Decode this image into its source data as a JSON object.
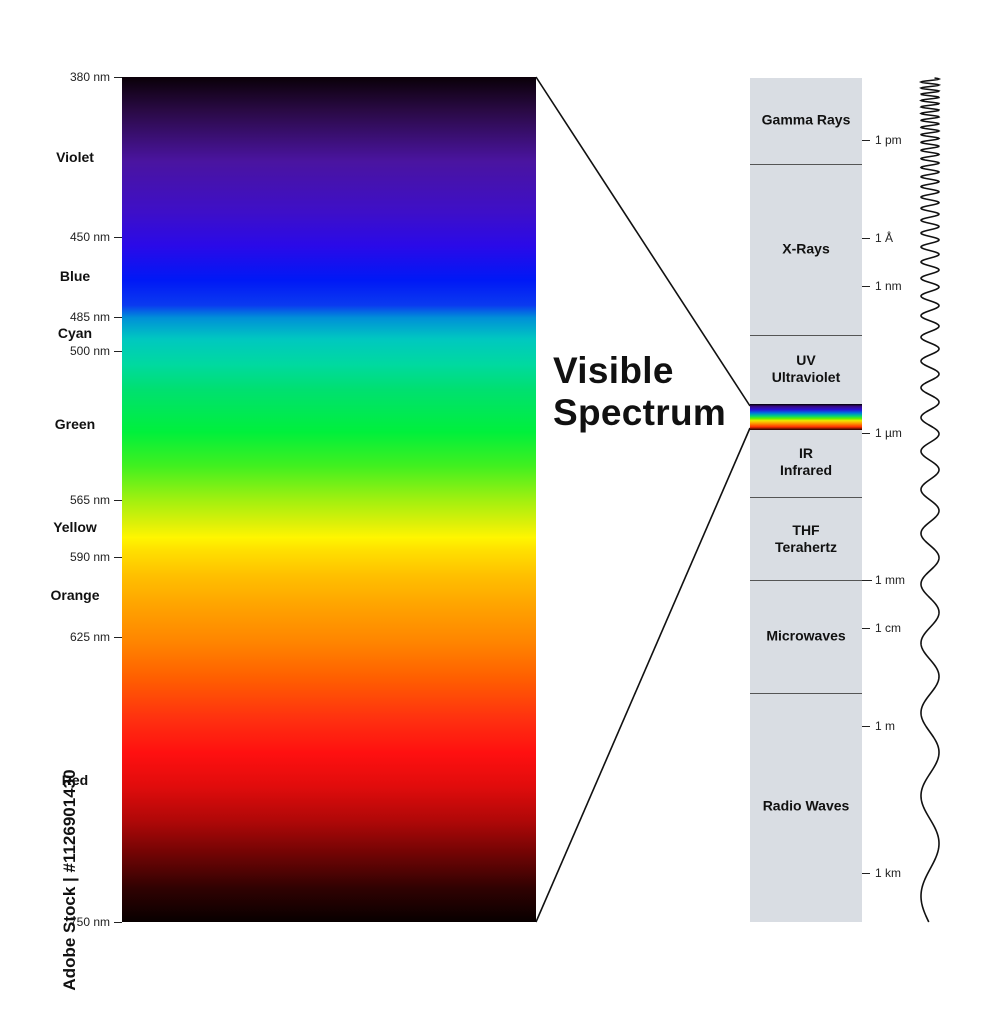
{
  "title": "Visible Spectrum",
  "title_line1": "Visible",
  "title_line2": "Spectrum",
  "wavelength_ticks": [
    {
      "label": "380 nm",
      "nm": 380
    },
    {
      "label": "450 nm",
      "nm": 450
    },
    {
      "label": "485 nm",
      "nm": 485
    },
    {
      "label": "500 nm",
      "nm": 500
    },
    {
      "label": "565 nm",
      "nm": 565
    },
    {
      "label": "590 nm",
      "nm": 590
    },
    {
      "label": "625 nm",
      "nm": 625
    },
    {
      "label": "750 nm",
      "nm": 750
    }
  ],
  "color_names": [
    {
      "label": "Violet",
      "nm": 415
    },
    {
      "label": "Blue",
      "nm": 467
    },
    {
      "label": "Cyan",
      "nm": 492
    },
    {
      "label": "Green",
      "nm": 532
    },
    {
      "label": "Yellow",
      "nm": 577
    },
    {
      "label": "Orange",
      "nm": 607
    },
    {
      "label": "Red",
      "nm": 688
    }
  ],
  "bands": [
    {
      "line1": "Gamma Rays",
      "line2": ""
    },
    {
      "line1": "X-Rays",
      "line2": ""
    },
    {
      "line1": "UV",
      "line2": "Ultraviolet"
    },
    {
      "line1": "IR",
      "line2": "Infrared"
    },
    {
      "line1": "THF",
      "line2": "Terahertz"
    },
    {
      "line1": "Microwaves",
      "line2": ""
    },
    {
      "line1": "Radio Waves",
      "line2": ""
    }
  ],
  "scale_labels": [
    "1 pm",
    "1 Å",
    "1 nm",
    "1 µm",
    "1 mm",
    "1 cm",
    "1 m",
    "1 km"
  ],
  "side_text": "Adobe Stock | #1126901430"
}
